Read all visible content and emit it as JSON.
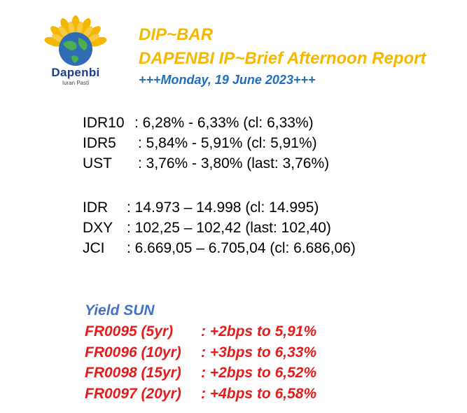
{
  "logo": {
    "name": "Dapenbi",
    "tagline": "Iuran Pasti"
  },
  "header": {
    "title": "DIP~BAR",
    "subtitle": "DAPENBI IP~Brief Afternoon Report",
    "date": "+++Monday, 19 June 2023+++"
  },
  "bonds": [
    {
      "label": "IDR10",
      "value": ": 6,28% - 6,33% (cl: 6,33%)"
    },
    {
      "label": "IDR5",
      "value": ": 5,84% - 5,91% (cl: 5,91%)"
    },
    {
      "label": "UST",
      "value": ": 3,76% - 3,80% (last: 3,76%)"
    }
  ],
  "markets": [
    {
      "label": "IDR",
      "value": ": 14.973 – 14.998 (cl: 14.995)"
    },
    {
      "label": "DXY",
      "value": ": 102,25 – 102,42 (last: 102,40)"
    },
    {
      "label": "JCI",
      "value": ": 6.669,05 – 6.705,04 (cl: 6.686,06)"
    }
  ],
  "sun": {
    "title": "Yield SUN",
    "rows": [
      {
        "label": "FR0095 (5yr)",
        "value": ": +2bps to 5,91%"
      },
      {
        "label": "FR0096 (10yr)",
        "value": ": +3bps to 6,33%"
      },
      {
        "label": "FR0098 (15yr)",
        "value": ": +2bps to 6,52%"
      },
      {
        "label": "FR0097 (20yr)",
        "value": ": +4bps to 6,58%"
      }
    ]
  },
  "colors": {
    "header_gold": "#f5b800",
    "date_blue": "#1f6fbf",
    "sun_title_blue": "#4472c4",
    "sun_red": "#e61c1c",
    "logo_navy": "#1b3f8b"
  },
  "icons": {
    "logo": "dapenbi-sunflower-globe-logo"
  }
}
